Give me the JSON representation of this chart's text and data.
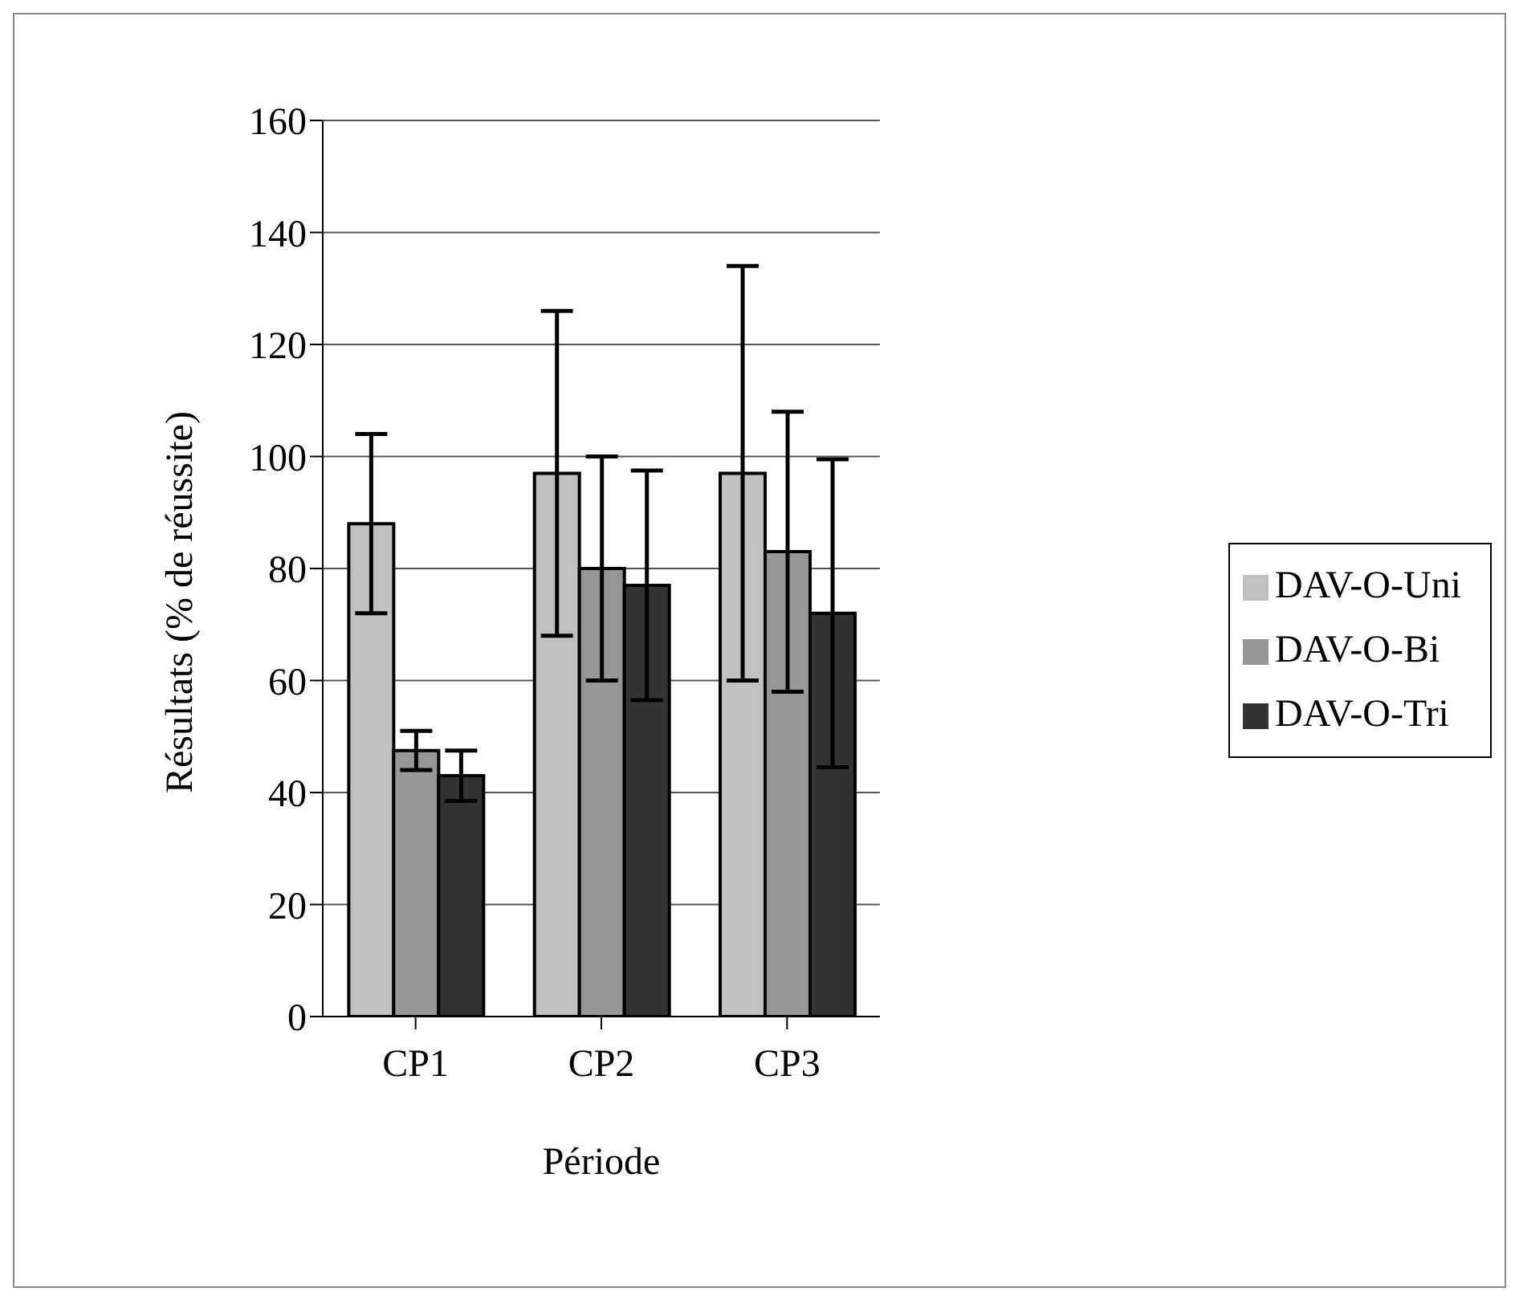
{
  "chart_data": {
    "type": "bar",
    "xlabel": "Période",
    "ylabel": "Résultats (% de réussite)",
    "categories": [
      "CP1",
      "CP2",
      "CP3"
    ],
    "series": [
      {
        "name": "DAV-O-Uni",
        "color": "#c0c0c0",
        "values": [
          88,
          97,
          97
        ],
        "errors": [
          16,
          29,
          37
        ]
      },
      {
        "name": "DAV-O-Bi",
        "color": "#969696",
        "values": [
          47.5,
          80,
          83
        ],
        "errors": [
          3.5,
          20,
          25
        ]
      },
      {
        "name": "DAV-O-Tri",
        "color": "#333333",
        "values": [
          43,
          77,
          72
        ],
        "errors": [
          4.5,
          20.5,
          27.5
        ]
      }
    ],
    "ylim": [
      0,
      160
    ],
    "yticks": [
      0,
      20,
      40,
      60,
      80,
      100,
      120,
      140,
      160
    ],
    "grid": "y",
    "legend": "right"
  }
}
